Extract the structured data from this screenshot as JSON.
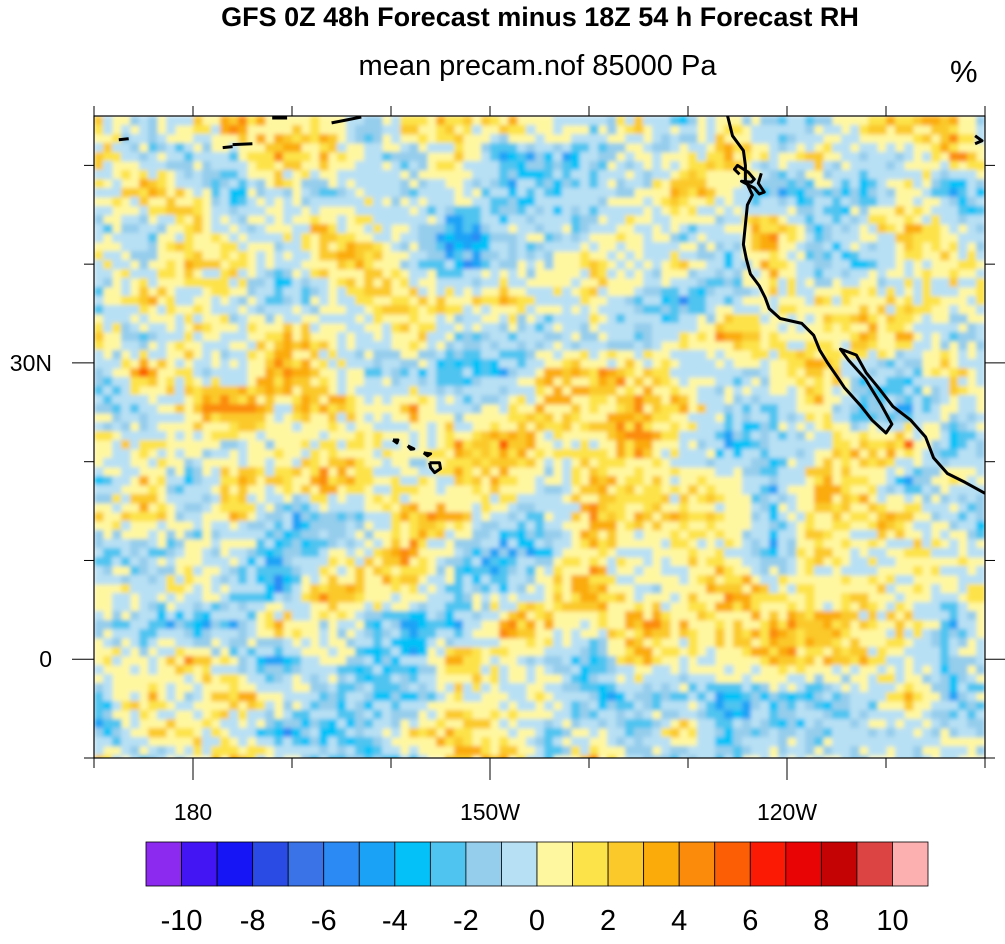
{
  "title": "GFS 0Z 48h Forecast minus 18Z 54 h Forecast RH",
  "subtitle": "mean precam.nof 85000 Pa",
  "units": "%",
  "map": {
    "lon_range": [
      -190,
      -100
    ],
    "lat_range": [
      -10,
      55
    ],
    "x_ticks": [
      {
        "lon": 180,
        "label": "180"
      },
      {
        "lon": -150,
        "label": "150W"
      },
      {
        "lon": -120,
        "label": "120W"
      }
    ],
    "y_ticks": [
      {
        "lat": 30,
        "label": "30N"
      },
      {
        "lat": 0,
        "label": "0"
      }
    ]
  },
  "colorbar": {
    "colors": [
      "#8d2af0",
      "#4415f3",
      "#1515f5",
      "#2a4ce4",
      "#3a72e8",
      "#2b8af4",
      "#1aa2f6",
      "#04c2f8",
      "#4fc4f0",
      "#95cdec",
      "#b8e0f4",
      "#fff7a0",
      "#fde34a",
      "#fbc92a",
      "#fbab0a",
      "#fb8b0a",
      "#fb5e05",
      "#fb1b05",
      "#e80404",
      "#c40404",
      "#dc4444",
      "#fcb0b0"
    ],
    "labels": [
      "-10",
      "-8",
      "-6",
      "-4",
      "-2",
      "0",
      "2",
      "4",
      "6",
      "8",
      "10"
    ]
  }
}
